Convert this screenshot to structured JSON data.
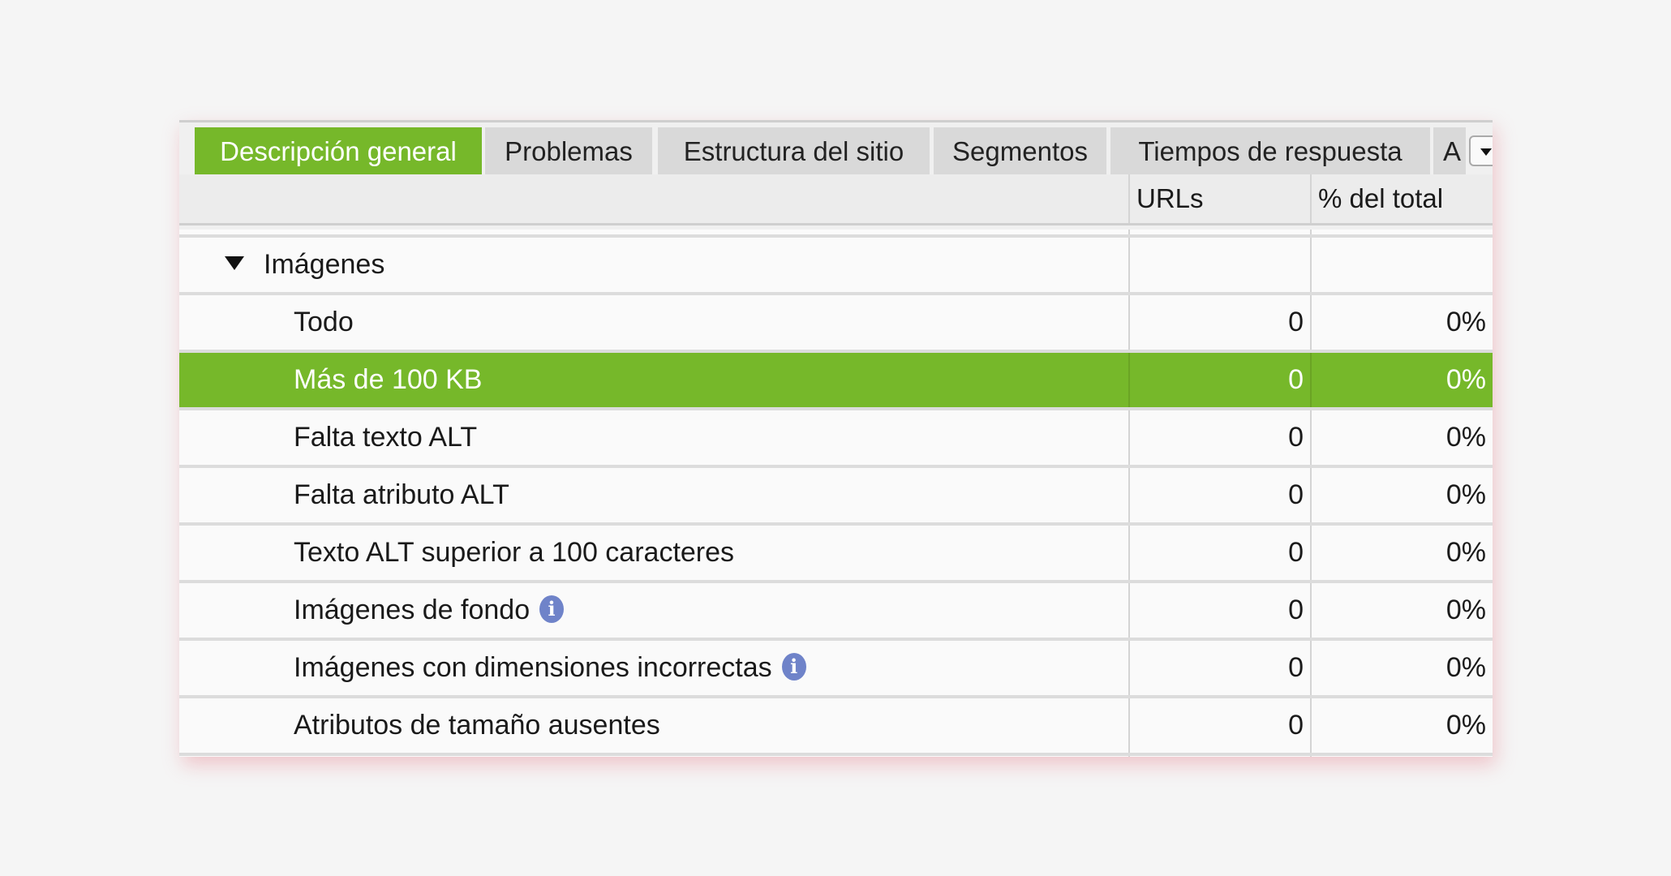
{
  "tabs": [
    {
      "label": "Descripción general",
      "active": true
    },
    {
      "label": "Problemas"
    },
    {
      "label": "Estructura del sitio"
    },
    {
      "label": "Segmentos"
    },
    {
      "label": "Tiempos de respuesta"
    },
    {
      "label": "A"
    }
  ],
  "table": {
    "columns": [
      "",
      "URLs",
      "% del total"
    ],
    "group": {
      "label": "Imágenes",
      "expanded": true
    },
    "rows": [
      {
        "label": "Todo",
        "urls": "0",
        "pct": "0%"
      },
      {
        "label": "Más de 100 KB",
        "urls": "0",
        "pct": "0%",
        "selected": true
      },
      {
        "label": "Falta texto ALT",
        "urls": "0",
        "pct": "0%"
      },
      {
        "label": "Falta atributo ALT",
        "urls": "0",
        "pct": "0%"
      },
      {
        "label": "Texto ALT superior a 100 caracteres",
        "urls": "0",
        "pct": "0%"
      },
      {
        "label": "Imágenes de fondo",
        "urls": "0",
        "pct": "0%",
        "info": true
      },
      {
        "label": "Imágenes con dimensiones incorrectas",
        "urls": "0",
        "pct": "0%",
        "info": true
      },
      {
        "label": "Atributos de tamaño ausentes",
        "urls": "0",
        "pct": "0%"
      }
    ]
  },
  "info_glyph": "i",
  "colors": {
    "accent": "#76b82a",
    "info": "#6f83c9",
    "background": "#f5f5f5"
  }
}
